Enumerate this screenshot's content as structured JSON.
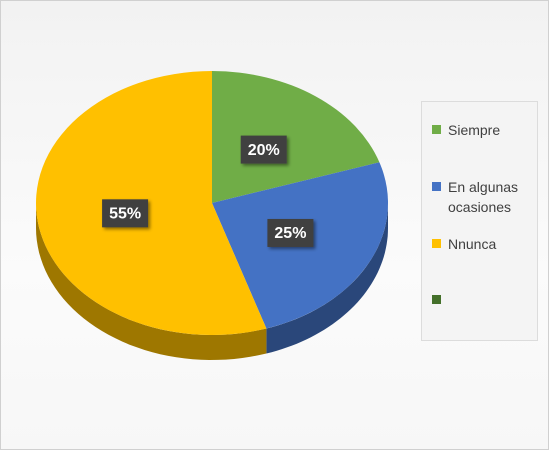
{
  "chart_data": {
    "type": "pie",
    "categories": [
      "Siempre",
      "En algunas ocasiones",
      "Nnunca",
      null
    ],
    "values": [
      20,
      25,
      55,
      0
    ],
    "value_labels": [
      "20%",
      "25%",
      "55%",
      null
    ],
    "colors": [
      "#70ad47",
      "#4472c4",
      "#ffc000",
      "#44702a"
    ],
    "legend": "right"
  }
}
